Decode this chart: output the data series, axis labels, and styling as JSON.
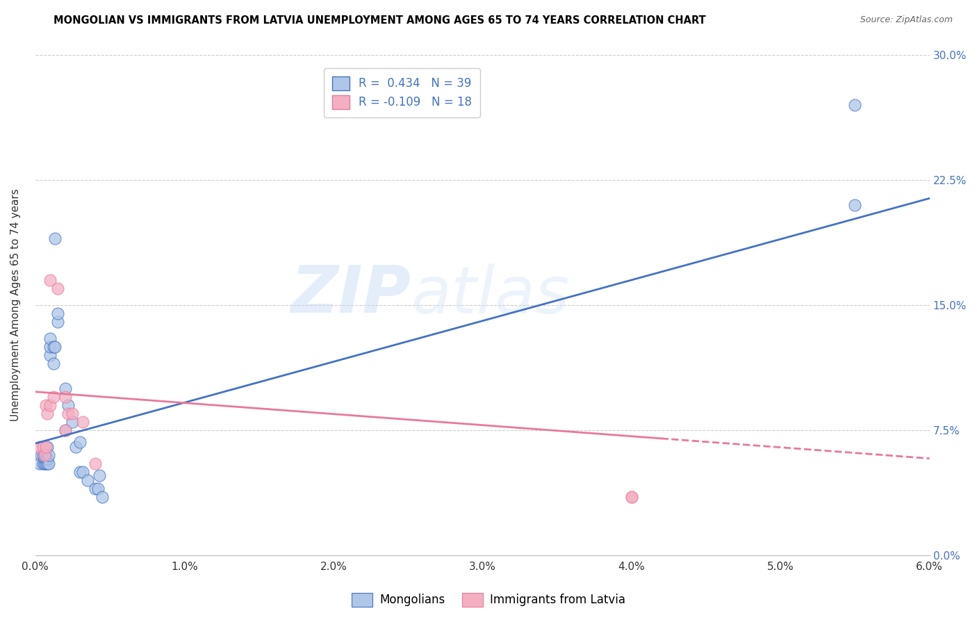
{
  "title": "MONGOLIAN VS IMMIGRANTS FROM LATVIA UNEMPLOYMENT AMONG AGES 65 TO 74 YEARS CORRELATION CHART",
  "source": "Source: ZipAtlas.com",
  "ylabel": "Unemployment Among Ages 65 to 74 years",
  "R_mongolian": 0.434,
  "N_mongolian": 39,
  "R_latvia": -0.109,
  "N_latvia": 18,
  "mongolian_color": "#aec6e8",
  "latvia_color": "#f4afc3",
  "mongolian_line_color": "#4472c4",
  "latvia_line_color": "#e8799a",
  "watermark_zip": "ZIP",
  "watermark_atlas": "atlas",
  "xlim": [
    0.0,
    0.06
  ],
  "ylim": [
    0.0,
    0.3
  ],
  "xticks": [
    0.0,
    0.01,
    0.02,
    0.03,
    0.04,
    0.05,
    0.06
  ],
  "yticks": [
    0.0,
    0.075,
    0.15,
    0.225,
    0.3
  ],
  "mongolian_x": [
    0.0003,
    0.0004,
    0.0005,
    0.0005,
    0.0006,
    0.0006,
    0.0006,
    0.0007,
    0.0007,
    0.0007,
    0.0008,
    0.0008,
    0.0008,
    0.0009,
    0.0009,
    0.001,
    0.001,
    0.001,
    0.0012,
    0.0012,
    0.0013,
    0.0013,
    0.0015,
    0.0015,
    0.002,
    0.002,
    0.0022,
    0.0025,
    0.0027,
    0.003,
    0.003,
    0.0032,
    0.0035,
    0.004,
    0.0042,
    0.0043,
    0.0045,
    0.055,
    0.055
  ],
  "mongolian_y": [
    0.055,
    0.06,
    0.055,
    0.06,
    0.055,
    0.06,
    0.058,
    0.055,
    0.058,
    0.06,
    0.055,
    0.058,
    0.065,
    0.055,
    0.06,
    0.12,
    0.125,
    0.13,
    0.115,
    0.125,
    0.19,
    0.125,
    0.14,
    0.145,
    0.1,
    0.075,
    0.09,
    0.08,
    0.065,
    0.068,
    0.05,
    0.05,
    0.045,
    0.04,
    0.04,
    0.048,
    0.035,
    0.21,
    0.27
  ],
  "latvia_x": [
    0.0003,
    0.0005,
    0.0006,
    0.0007,
    0.0007,
    0.0008,
    0.001,
    0.001,
    0.0012,
    0.0015,
    0.002,
    0.002,
    0.0022,
    0.0025,
    0.0032,
    0.004,
    0.04,
    0.04
  ],
  "latvia_y": [
    0.065,
    0.065,
    0.06,
    0.065,
    0.09,
    0.085,
    0.165,
    0.09,
    0.095,
    0.16,
    0.095,
    0.075,
    0.085,
    0.085,
    0.08,
    0.055,
    0.035,
    0.035
  ],
  "background_color": "#ffffff",
  "grid_color": "#cccccc",
  "trend_blue_x0": 0.0,
  "trend_blue_y0": 0.067,
  "trend_blue_x1": 0.06,
  "trend_blue_y1": 0.214,
  "trend_pink_x0": 0.0,
  "trend_pink_y0": 0.098,
  "trend_pink_x1": 0.06,
  "trend_pink_y1": 0.058,
  "trend_pink_solid_end": 0.042
}
